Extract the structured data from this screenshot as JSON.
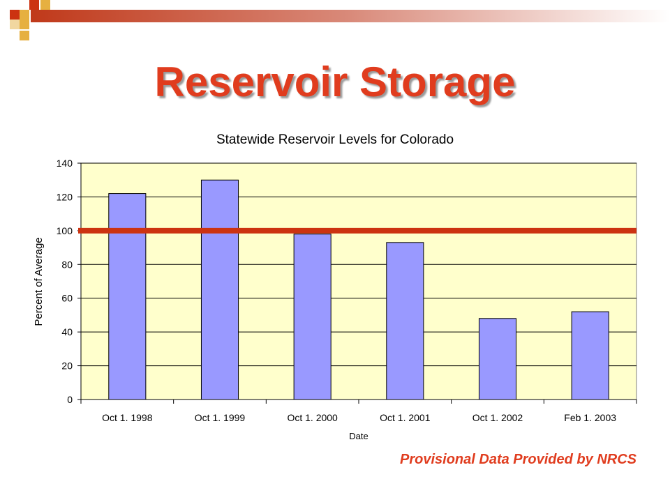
{
  "slide": {
    "title": "Reservoir Storage",
    "footer_note": "Provisional Data Provided by NRCS"
  },
  "colors": {
    "title": "#e03c1e",
    "plot_background": "#ffffcc",
    "bar_fill": "#9999ff",
    "reference_line": "#cc3311"
  },
  "chart_data": {
    "type": "bar",
    "title": "Statewide Reservoir Levels for Colorado",
    "xlabel": "Date",
    "ylabel": "Percent of Average",
    "categories": [
      "Oct 1. 1998",
      "Oct 1. 1999",
      "Oct 1. 2000",
      "Oct 1. 2001",
      "Oct 1. 2002",
      "Feb 1. 2003"
    ],
    "values": [
      122,
      130,
      98,
      93,
      48,
      52
    ],
    "ylim": [
      0,
      140
    ],
    "yticks": [
      "0",
      "20",
      "40",
      "60",
      "80",
      "100",
      "120",
      "140"
    ],
    "reference_line": 100,
    "grid": true,
    "legend": "none"
  }
}
